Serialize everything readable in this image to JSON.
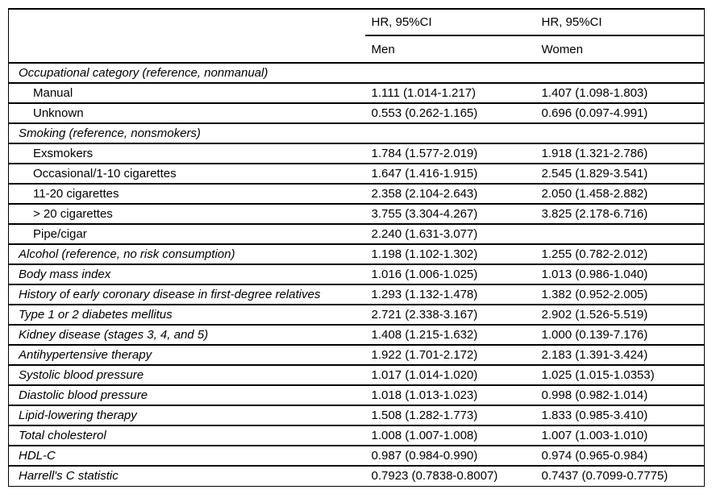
{
  "page": {
    "background_color": "#ffffff",
    "text_color": "#000000",
    "rule_color": "#000000"
  },
  "table": {
    "header": {
      "group_men": "HR, 95%CI",
      "group_women": "HR, 95%CI",
      "col_men": "Men",
      "col_women": "Women"
    },
    "rows": [
      {
        "label": "Occupational category (reference, nonmanual)",
        "indent": false,
        "italic": true,
        "men": "",
        "women": ""
      },
      {
        "label": "Manual",
        "indent": true,
        "italic": false,
        "men": "1.111 (1.014-1.217)",
        "women": "1.407 (1.098-1.803)"
      },
      {
        "label": "Unknown",
        "indent": true,
        "italic": false,
        "men": "0.553 (0.262-1.165)",
        "women": "0.696 (0.097-4.991)"
      },
      {
        "label": "Smoking (reference, nonsmokers)",
        "indent": false,
        "italic": true,
        "men": "",
        "women": ""
      },
      {
        "label": "Exsmokers",
        "indent": true,
        "italic": false,
        "men": "1.784 (1.577-2.019)",
        "women": "1.918 (1.321-2.786)"
      },
      {
        "label": "Occasional/1-10 cigarettes",
        "indent": true,
        "italic": false,
        "men": "1.647 (1.416-1.915)",
        "women": "2.545 (1.829-3.541)"
      },
      {
        "label": "11-20 cigarettes",
        "indent": true,
        "italic": false,
        "men": "2.358 (2.104-2.643)",
        "women": "2.050 (1.458-2.882)"
      },
      {
        "label": "> 20 cigarettes",
        "indent": true,
        "italic": false,
        "men": "3.755 (3.304-4.267)",
        "women": "3.825 (2.178-6.716)"
      },
      {
        "label": "Pipe/cigar",
        "indent": true,
        "italic": false,
        "men": "2.240 (1.631-3.077)",
        "women": ""
      },
      {
        "label": "Alcohol (reference, no risk consumption)",
        "indent": false,
        "italic": true,
        "men": "1.198 (1.102-1.302)",
        "women": "1.255 (0.782-2.012)"
      },
      {
        "label": "Body mass index",
        "indent": false,
        "italic": true,
        "men": "1.016 (1.006-1.025)",
        "women": "1.013 (0.986-1.040)"
      },
      {
        "label": "History of early coronary disease in first-degree relatives",
        "indent": false,
        "italic": true,
        "men": "1.293 (1.132-1.478)",
        "women": "1.382 (0.952-2.005)"
      },
      {
        "label": "Type 1 or 2 diabetes mellitus",
        "indent": false,
        "italic": true,
        "men": "2.721 (2.338-3.167)",
        "women": "2.902 (1.526-5.519)"
      },
      {
        "label": "Kidney disease (stages 3, 4, and 5)",
        "indent": false,
        "italic": true,
        "men": "1.408 (1.215-1.632)",
        "women": "1.000 (0.139-7.176)"
      },
      {
        "label": "Antihypertensive therapy",
        "indent": false,
        "italic": true,
        "men": "1.922 (1.701-2.172)",
        "women": "2.183 (1.391-3.424)"
      },
      {
        "label": "Systolic blood pressure",
        "indent": false,
        "italic": true,
        "men": "1.017 (1.014-1.020)",
        "women": "1.025 (1.015-1.0353)"
      },
      {
        "label": "Diastolic blood pressure",
        "indent": false,
        "italic": true,
        "men": "1.018 (1.013-1.023)",
        "women": "0.998 (0.982-1.014)"
      },
      {
        "label": "Lipid-lowering therapy",
        "indent": false,
        "italic": true,
        "men": "1.508 (1.282-1.773)",
        "women": "1.833 (0.985-3.410)"
      },
      {
        "label": "Total cholesterol",
        "indent": false,
        "italic": true,
        "men": "1.008 (1.007-1.008)",
        "women": "1.007 (1.003-1.010)"
      },
      {
        "label": "HDL-C",
        "indent": false,
        "italic": true,
        "men": "0.987 (0.984-0.990)",
        "women": "0.974 (0.965-0.984)"
      },
      {
        "label": "Harrell's C statistic",
        "indent": false,
        "italic": true,
        "men": "0.7923 (0.7838-0.8007)",
        "women": "0.7437 (0.7099-0.7775)"
      }
    ]
  }
}
